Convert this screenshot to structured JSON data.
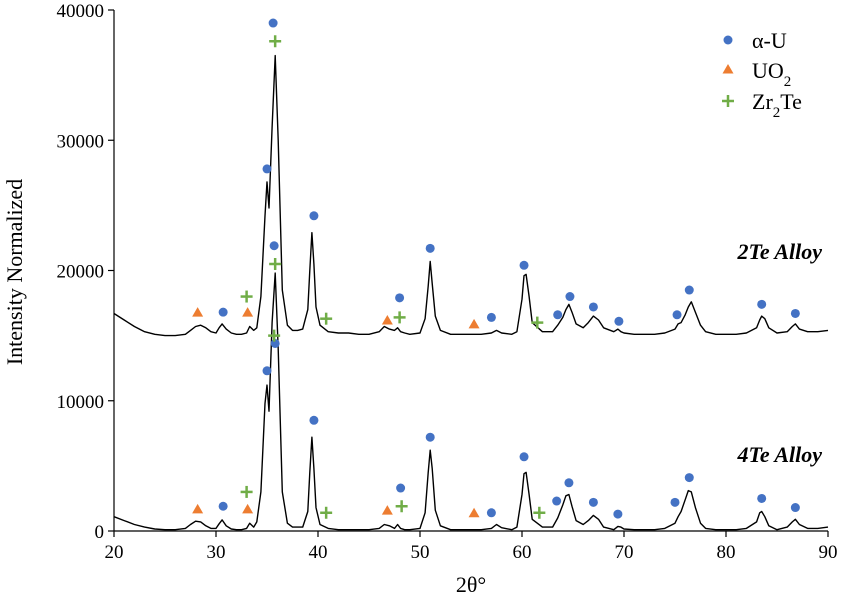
{
  "chart_data": {
    "type": "line",
    "xlabel": "2θ°",
    "ylabel": "Intensity Normalized",
    "xlim": [
      20,
      90
    ],
    "ylim": [
      0,
      40000
    ],
    "x_ticks": [
      "20",
      "30",
      "40",
      "50",
      "60",
      "70",
      "80",
      "90"
    ],
    "y_ticks": [
      "0",
      "10000",
      "20000",
      "30000",
      "40000"
    ],
    "grid": false,
    "legend_position": "top-right",
    "legend": [
      {
        "key": "alpha_u",
        "label": "α-U",
        "marker": "circle",
        "color": "#4472C4"
      },
      {
        "key": "uo2",
        "label": "UO",
        "sub": "2",
        "rest": "",
        "marker": "triangle",
        "color": "#ED7D31"
      },
      {
        "key": "zr2te",
        "label": "Zr",
        "sub": "2",
        "rest": "Te",
        "marker": "plus",
        "color": "#70AD47"
      }
    ],
    "series": [
      {
        "name": "2Te Alloy",
        "baseline": 15000,
        "x": [
          20,
          21,
          22,
          23,
          24,
          25,
          26,
          27,
          27.5,
          28,
          28.5,
          29,
          29.5,
          30,
          30.3,
          30.6,
          31,
          31.5,
          32,
          32.5,
          33,
          33.3,
          33.7,
          34,
          34.4,
          34.8,
          35,
          35.2,
          35.5,
          35.8,
          36.1,
          36.5,
          37,
          37.5,
          38,
          38.5,
          39,
          39.2,
          39.4,
          39.6,
          39.8,
          40.2,
          41,
          42,
          43,
          44,
          45,
          46,
          46.5,
          47,
          47.5,
          47.8,
          48.1,
          48.5,
          49,
          50,
          50.5,
          50.8,
          51,
          51.2,
          51.5,
          52,
          53,
          54,
          55,
          56,
          57,
          57.5,
          58,
          59,
          59.5,
          60,
          60.2,
          60.4,
          60.7,
          61,
          62,
          63,
          63.5,
          64,
          64.3,
          64.6,
          64.9,
          65.3,
          66,
          66.5,
          67,
          67.5,
          68,
          69,
          69.4,
          69.7,
          70,
          71,
          72,
          73,
          74,
          75,
          75.3,
          75.6,
          76,
          76.3,
          76.6,
          77,
          77.5,
          78,
          79,
          80,
          81,
          82,
          83,
          83.3,
          83.5,
          83.8,
          84.2,
          85,
          86,
          86.5,
          86.8,
          87.2,
          88,
          89,
          90
        ],
        "y": [
          16700,
          16200,
          15700,
          15300,
          15100,
          15000,
          15000,
          15100,
          15400,
          15700,
          15800,
          15600,
          15300,
          15200,
          15600,
          15900,
          15500,
          15200,
          15100,
          15100,
          15200,
          15700,
          15400,
          15600,
          18000,
          24200,
          26800,
          24800,
          31000,
          36500,
          30000,
          18500,
          15800,
          15400,
          15400,
          15500,
          17000,
          20000,
          22900,
          20500,
          17200,
          15800,
          15300,
          15200,
          15200,
          15100,
          15100,
          15300,
          15700,
          15500,
          15400,
          15600,
          15300,
          15200,
          15100,
          15200,
          16300,
          18800,
          20700,
          19000,
          16500,
          15400,
          15100,
          15100,
          15100,
          15100,
          15200,
          15400,
          15200,
          15100,
          15300,
          17800,
          19600,
          19700,
          18000,
          16000,
          15300,
          15300,
          15800,
          16400,
          17000,
          17400,
          16800,
          15900,
          15600,
          16000,
          16500,
          16200,
          15600,
          15300,
          15500,
          15300,
          15200,
          15100,
          15100,
          15100,
          15200,
          15500,
          15900,
          16000,
          16600,
          17200,
          17600,
          16800,
          15800,
          15300,
          15100,
          15100,
          15100,
          15200,
          15600,
          16200,
          16500,
          16300,
          15600,
          15200,
          15300,
          15700,
          15900,
          15500,
          15300,
          15300,
          15400
        ]
      },
      {
        "name": "4Te Alloy",
        "baseline": 0,
        "x": [
          20,
          21,
          22,
          23,
          24,
          25,
          26,
          27,
          27.5,
          28,
          28.5,
          29,
          29.5,
          30,
          30.3,
          30.6,
          31,
          31.5,
          32,
          32.5,
          33,
          33.3,
          33.7,
          34,
          34.4,
          34.8,
          35,
          35.2,
          35.5,
          35.8,
          36.1,
          36.5,
          37,
          37.5,
          38,
          38.5,
          39,
          39.2,
          39.4,
          39.6,
          39.8,
          40.2,
          41,
          42,
          43,
          44,
          45,
          46,
          46.5,
          47,
          47.5,
          47.8,
          48.1,
          48.5,
          49,
          50,
          50.5,
          50.8,
          51,
          51.2,
          51.5,
          52,
          53,
          54,
          55,
          56,
          57,
          57.5,
          58,
          59,
          59.5,
          60,
          60.2,
          60.4,
          60.7,
          61,
          62,
          63,
          63.5,
          64,
          64.3,
          64.6,
          64.9,
          65.3,
          66,
          66.5,
          67,
          67.5,
          68,
          69,
          69.4,
          69.7,
          70,
          71,
          72,
          73,
          74,
          75,
          75.3,
          75.6,
          76,
          76.3,
          76.6,
          77,
          77.5,
          78,
          79,
          80,
          81,
          82,
          83,
          83.3,
          83.5,
          83.8,
          84.2,
          85,
          86,
          86.5,
          86.8,
          87.2,
          88,
          89,
          90
        ],
        "y": [
          1100,
          800,
          500,
          300,
          150,
          100,
          100,
          200,
          500,
          750,
          700,
          400,
          200,
          200,
          550,
          850,
          400,
          150,
          100,
          100,
          200,
          600,
          300,
          700,
          3000,
          9800,
          11200,
          9200,
          16000,
          19800,
          14000,
          3000,
          600,
          300,
          300,
          300,
          1500,
          4500,
          7200,
          4800,
          1800,
          500,
          200,
          100,
          100,
          100,
          100,
          200,
          500,
          400,
          200,
          500,
          200,
          100,
          100,
          200,
          1400,
          4500,
          6200,
          4800,
          1600,
          400,
          100,
          100,
          100,
          100,
          200,
          500,
          250,
          100,
          300,
          2800,
          4400,
          4500,
          2800,
          900,
          300,
          300,
          1000,
          2000,
          2700,
          2800,
          1900,
          800,
          500,
          800,
          1200,
          900,
          300,
          100,
          350,
          300,
          150,
          100,
          100,
          100,
          200,
          600,
          1100,
          1500,
          2400,
          3100,
          3000,
          1800,
          600,
          200,
          100,
          100,
          100,
          200,
          700,
          1400,
          1500,
          1100,
          400,
          100,
          300,
          700,
          900,
          500,
          200,
          200,
          300
        ]
      }
    ],
    "markers": {
      "alpha_u": [
        [
          30.7,
          16800
        ],
        [
          35.0,
          27800
        ],
        [
          35.6,
          39000
        ],
        [
          35.7,
          21900
        ],
        [
          39.6,
          24200
        ],
        [
          48.0,
          17900
        ],
        [
          51.0,
          21700
        ],
        [
          57.0,
          16400
        ],
        [
          60.2,
          20400
        ],
        [
          63.5,
          16600
        ],
        [
          64.7,
          18000
        ],
        [
          67.0,
          17200
        ],
        [
          69.5,
          16100
        ],
        [
          75.2,
          16600
        ],
        [
          76.4,
          18500
        ],
        [
          83.5,
          17400
        ],
        [
          86.8,
          16700
        ],
        [
          30.7,
          1900
        ],
        [
          35.0,
          12300
        ],
        [
          35.8,
          14400
        ],
        [
          39.6,
          8500
        ],
        [
          48.1,
          3300
        ],
        [
          51.0,
          7200
        ],
        [
          57.0,
          1400
        ],
        [
          60.2,
          5700
        ],
        [
          63.4,
          2300
        ],
        [
          64.6,
          3700
        ],
        [
          67.0,
          2200
        ],
        [
          69.4,
          1300
        ],
        [
          75.0,
          2200
        ],
        [
          76.4,
          4100
        ],
        [
          83.5,
          2500
        ],
        [
          86.8,
          1800
        ]
      ],
      "uo2": [
        [
          28.2,
          16800
        ],
        [
          33.1,
          16800
        ],
        [
          46.8,
          16200
        ],
        [
          55.3,
          15900
        ],
        [
          28.2,
          1700
        ],
        [
          33.1,
          1700
        ],
        [
          46.8,
          1600
        ],
        [
          55.3,
          1400
        ]
      ],
      "zr2te": [
        [
          33.0,
          18000
        ],
        [
          35.8,
          37600
        ],
        [
          35.8,
          20500
        ],
        [
          40.8,
          16300
        ],
        [
          48.0,
          16400
        ],
        [
          61.5,
          16000
        ],
        [
          33.0,
          3000
        ],
        [
          35.7,
          15000
        ],
        [
          40.8,
          1400
        ],
        [
          48.2,
          1900
        ],
        [
          61.7,
          1400
        ]
      ]
    }
  }
}
